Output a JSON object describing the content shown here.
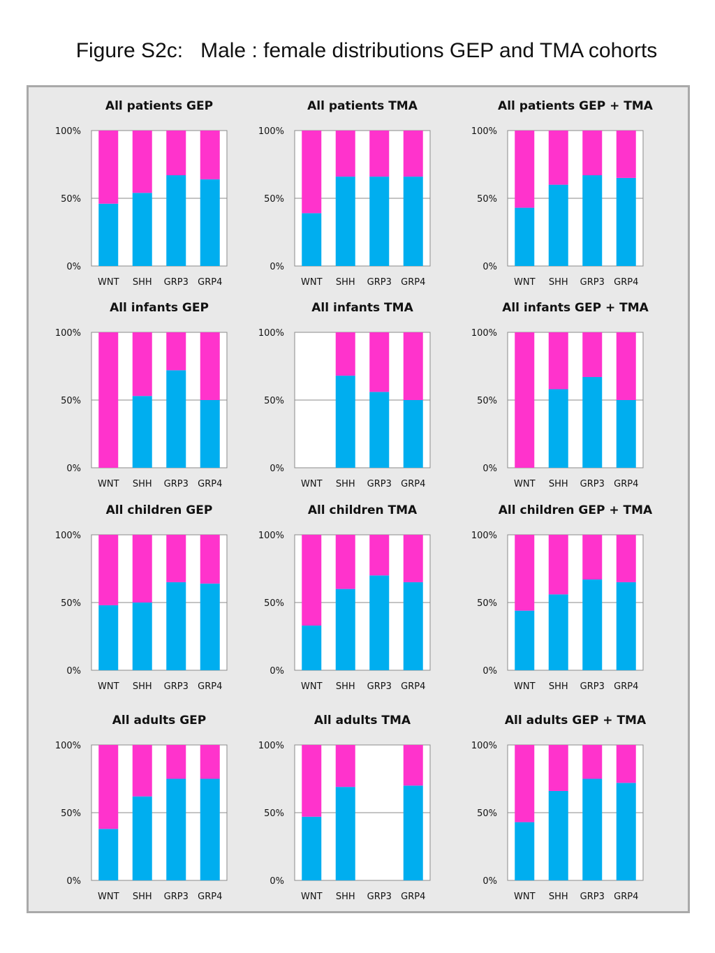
{
  "figure_title": "Figure S2c:   Male : female distributions GEP and TMA cohorts",
  "colors": {
    "male": "#00aeef",
    "female": "#ff33cc",
    "plot_bg": "#ffffff",
    "panel_bg": "#e9e9e9"
  },
  "chart_data": [
    {
      "type": "bar",
      "stacked": true,
      "title": "All patients GEP",
      "categories": [
        "WNT",
        "SHH",
        "GRP3",
        "GRP4"
      ],
      "yticks": [
        "0%",
        "50%",
        "100%"
      ],
      "ylim": [
        0,
        100
      ],
      "grid": true,
      "series": [
        {
          "values": [
            46,
            54,
            67,
            64
          ]
        },
        {
          "values": [
            54,
            46,
            33,
            36
          ]
        }
      ]
    },
    {
      "type": "bar",
      "stacked": true,
      "title": "All patients TMA",
      "categories": [
        "WNT",
        "SHH",
        "GRP3",
        "GRP4"
      ],
      "yticks": [
        "0%",
        "50%",
        "100%"
      ],
      "ylim": [
        0,
        100
      ],
      "grid": true,
      "series": [
        {
          "values": [
            39,
            66,
            66,
            66
          ]
        },
        {
          "values": [
            61,
            34,
            34,
            34
          ]
        }
      ]
    },
    {
      "type": "bar",
      "stacked": true,
      "title": "All patients GEP + TMA",
      "categories": [
        "WNT",
        "SHH",
        "GRP3",
        "GRP4"
      ],
      "yticks": [
        "0%",
        "50%",
        "100%"
      ],
      "ylim": [
        0,
        100
      ],
      "grid": true,
      "series": [
        {
          "values": [
            43,
            60,
            67,
            65
          ]
        },
        {
          "values": [
            57,
            40,
            33,
            35
          ]
        }
      ]
    },
    {
      "type": "bar",
      "stacked": true,
      "title": "All infants GEP",
      "categories": [
        "WNT",
        "SHH",
        "GRP3",
        "GRP4"
      ],
      "yticks": [
        "0%",
        "50%",
        "100%"
      ],
      "ylim": [
        0,
        100
      ],
      "grid": true,
      "series": [
        {
          "values": [
            0,
            53,
            72,
            50
          ]
        },
        {
          "values": [
            100,
            47,
            28,
            50
          ]
        }
      ]
    },
    {
      "type": "bar",
      "stacked": true,
      "title": "All infants TMA",
      "categories": [
        "WNT",
        "SHH",
        "GRP3",
        "GRP4"
      ],
      "yticks": [
        "0%",
        "50%",
        "100%"
      ],
      "ylim": [
        0,
        100
      ],
      "grid": true,
      "series": [
        {
          "values": [
            0,
            68,
            56,
            50
          ]
        },
        {
          "values": [
            0,
            32,
            44,
            50
          ]
        }
      ]
    },
    {
      "type": "bar",
      "stacked": true,
      "title": "All infants GEP + TMA",
      "categories": [
        "WNT",
        "SHH",
        "GRP3",
        "GRP4"
      ],
      "yticks": [
        "0%",
        "50%",
        "100%"
      ],
      "ylim": [
        0,
        100
      ],
      "grid": true,
      "series": [
        {
          "values": [
            0,
            58,
            67,
            50
          ]
        },
        {
          "values": [
            100,
            42,
            33,
            50
          ]
        }
      ]
    },
    {
      "type": "bar",
      "stacked": true,
      "title": "All children GEP",
      "categories": [
        "WNT",
        "SHH",
        "GRP3",
        "GRP4"
      ],
      "yticks": [
        "0%",
        "50%",
        "100%"
      ],
      "ylim": [
        0,
        100
      ],
      "grid": true,
      "series": [
        {
          "values": [
            48,
            50,
            65,
            64
          ]
        },
        {
          "values": [
            52,
            50,
            35,
            36
          ]
        }
      ]
    },
    {
      "type": "bar",
      "stacked": true,
      "title": "All children TMA",
      "categories": [
        "WNT",
        "SHH",
        "GRP3",
        "GRP4"
      ],
      "yticks": [
        "0%",
        "50%",
        "100%"
      ],
      "ylim": [
        0,
        100
      ],
      "grid": true,
      "series": [
        {
          "values": [
            33,
            60,
            70,
            65
          ]
        },
        {
          "values": [
            67,
            40,
            30,
            35
          ]
        }
      ]
    },
    {
      "type": "bar",
      "stacked": true,
      "title": "All children GEP + TMA",
      "categories": [
        "WNT",
        "SHH",
        "GRP3",
        "GRP4"
      ],
      "yticks": [
        "0%",
        "50%",
        "100%"
      ],
      "ylim": [
        0,
        100
      ],
      "grid": true,
      "series": [
        {
          "values": [
            44,
            56,
            67,
            65
          ]
        },
        {
          "values": [
            56,
            44,
            33,
            35
          ]
        }
      ]
    },
    {
      "type": "bar",
      "stacked": true,
      "title": "All adults GEP",
      "categories": [
        "WNT",
        "SHH",
        "GRP3",
        "GRP4"
      ],
      "yticks": [
        "0%",
        "50%",
        "100%"
      ],
      "ylim": [
        0,
        100
      ],
      "grid": true,
      "series": [
        {
          "values": [
            38,
            62,
            75,
            75
          ]
        },
        {
          "values": [
            62,
            38,
            25,
            25
          ]
        }
      ]
    },
    {
      "type": "bar",
      "stacked": true,
      "title": "All adults TMA",
      "categories": [
        "WNT",
        "SHH",
        "GRP3",
        "GRP4"
      ],
      "yticks": [
        "0%",
        "50%",
        "100%"
      ],
      "ylim": [
        0,
        100
      ],
      "grid": true,
      "series": [
        {
          "values": [
            47,
            69,
            0,
            70
          ]
        },
        {
          "values": [
            53,
            31,
            0,
            30
          ]
        }
      ]
    },
    {
      "type": "bar",
      "stacked": true,
      "title": "All adults GEP + TMA",
      "categories": [
        "WNT",
        "SHH",
        "GRP3",
        "GRP4"
      ],
      "yticks": [
        "0%",
        "50%",
        "100%"
      ],
      "ylim": [
        0,
        100
      ],
      "grid": true,
      "series": [
        {
          "values": [
            43,
            66,
            75,
            72
          ]
        },
        {
          "values": [
            57,
            34,
            25,
            28
          ]
        }
      ]
    }
  ]
}
